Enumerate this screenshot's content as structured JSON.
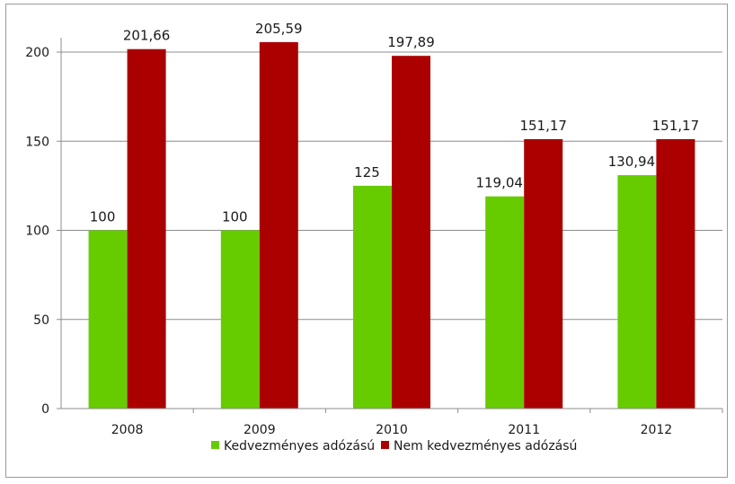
{
  "chart_data": {
    "type": "bar",
    "title": "",
    "xlabel": "",
    "ylabel": "",
    "categories": [
      "2008",
      "2009",
      "2010",
      "2011",
      "2012"
    ],
    "series": [
      {
        "name": "Kedvezményes adózású",
        "color": "#66cc00",
        "values": [
          100,
          100,
          125,
          119.04,
          130.94
        ],
        "labels": [
          "100",
          "100",
          "125",
          "119,04",
          "130,94"
        ]
      },
      {
        "name": "Nem kedvezményes adózású",
        "color": "#aa0000",
        "values": [
          201.66,
          205.59,
          197.89,
          151.17,
          151.17
        ],
        "labels": [
          "201,66",
          "205,59",
          "197,89",
          "151,17",
          "151,17"
        ]
      }
    ],
    "ylim": [
      0,
      200
    ],
    "yticks": [
      0,
      50,
      100,
      150,
      200
    ],
    "ytick_labels": [
      "0",
      "50",
      "100",
      "150",
      "200"
    ],
    "grid": true,
    "legend_position": "bottom"
  }
}
